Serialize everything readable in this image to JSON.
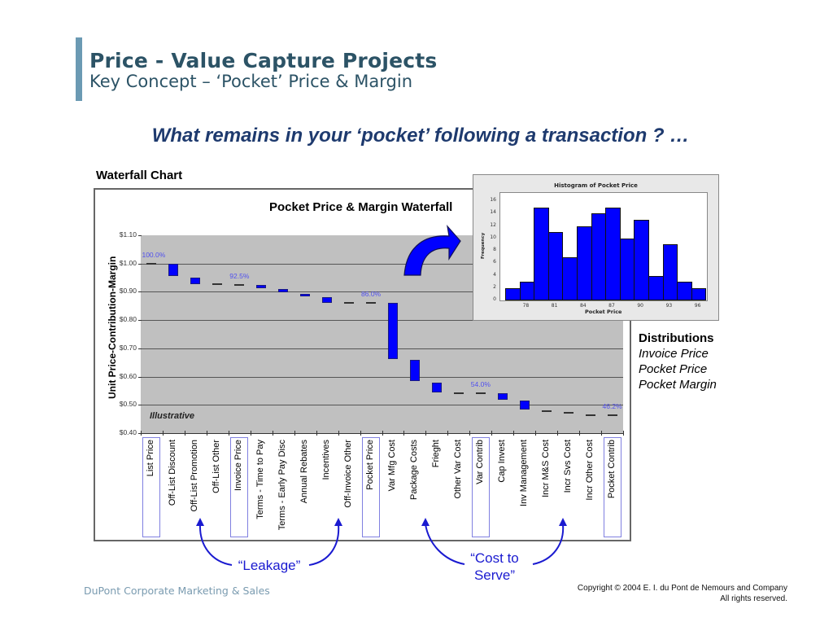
{
  "slide": {
    "title": "Price - Value Capture Projects",
    "subtitle": "Key Concept – ‘Pocket’ Price & Margin",
    "question": "What remains in your ‘pocket’ following a transaction ? …",
    "section_label": "Waterfall Chart",
    "illustrative_label": "Illustrative",
    "distributions": {
      "heading": "Distributions",
      "items": [
        "Invoice Price",
        "Pocket Price",
        "Pocket Margin"
      ]
    },
    "callouts": {
      "leakage": "“Leakage”",
      "cost_to_serve_line1": "“Cost to",
      "cost_to_serve_line2": "Serve”"
    },
    "footer": {
      "left": "DuPont Corporate Marketing & Sales",
      "copyright_line1": "Copyright © 2004 E. I. du Pont de Nemours and Company",
      "copyright_line2": "All rights reserved."
    },
    "colors": {
      "accent_bar": "#6b9ab3",
      "title": "#2c5366",
      "question": "#1e3a6e",
      "bar_fill": "#0000ff",
      "plot_bg": "#c0c0c0",
      "pct_label": "#5050ee",
      "callout": "#1a1ad0"
    }
  },
  "chart_data": [
    {
      "type": "bar",
      "subtype": "waterfall",
      "title": "Pocket Price & Margin Waterfall",
      "xlabel": "",
      "ylabel": "Unit Price-Contribution-Margin",
      "ylim": [
        0.4,
        1.1
      ],
      "yticks": [
        "$1.10",
        "$1.00",
        "$0.90",
        "$0.80",
        "$0.70",
        "$0.60",
        "$0.50",
        "$0.40"
      ],
      "grid": true,
      "categories": [
        "List Price",
        "Off-List Discount",
        "Off-List Promotion",
        "Off-List Other",
        "Invoice Price",
        "Terms - Time to Pay",
        "Terms - Early Pay Disc",
        "Annual Rebates",
        "Incentives",
        "Off-Invoice Other",
        "Pocket Price",
        "Var Mfg Cost",
        "Package Costs",
        "Frieght",
        "Other Var Cost",
        "Var Contrib",
        "Cap Invest",
        "Inv Management",
        "Incr M&S Cost",
        "Incr Svs Cost",
        "Incr Other Cost",
        "Pocket Contrib"
      ],
      "bars": [
        {
          "label": "List Price",
          "kind": "total",
          "top": 1.0,
          "bottom": 1.0
        },
        {
          "label": "Off-List Discount",
          "kind": "delta",
          "top": 1.0,
          "bottom": 0.955
        },
        {
          "label": "Off-List Promotion",
          "kind": "delta",
          "top": 0.95,
          "bottom": 0.928
        },
        {
          "label": "Off-List Other",
          "kind": "delta",
          "top": 0.926,
          "bottom": 0.925
        },
        {
          "label": "Invoice Price",
          "kind": "total",
          "top": 0.925,
          "bottom": 0.925
        },
        {
          "label": "Terms - Time to Pay",
          "kind": "delta",
          "top": 0.925,
          "bottom": 0.913
        },
        {
          "label": "Terms - Early Pay Disc",
          "kind": "delta",
          "top": 0.91,
          "bottom": 0.897
        },
        {
          "label": "Annual Rebates",
          "kind": "delta",
          "top": 0.893,
          "bottom": 0.887
        },
        {
          "label": "Incentives",
          "kind": "delta",
          "top": 0.882,
          "bottom": 0.862
        },
        {
          "label": "Off-Invoice Other",
          "kind": "delta",
          "top": 0.86,
          "bottom": 0.859
        },
        {
          "label": "Pocket Price",
          "kind": "total",
          "top": 0.86,
          "bottom": 0.86
        },
        {
          "label": "Var Mfg Cost",
          "kind": "delta",
          "top": 0.86,
          "bottom": 0.663
        },
        {
          "label": "Package Costs",
          "kind": "delta",
          "top": 0.66,
          "bottom": 0.583
        },
        {
          "label": "Frieght",
          "kind": "delta",
          "top": 0.58,
          "bottom": 0.543
        },
        {
          "label": "Other Var Cost",
          "kind": "delta",
          "top": 0.541,
          "bottom": 0.54
        },
        {
          "label": "Var Contrib",
          "kind": "total",
          "top": 0.54,
          "bottom": 0.54
        },
        {
          "label": "Cap Invest",
          "kind": "delta",
          "top": 0.54,
          "bottom": 0.518
        },
        {
          "label": "Inv Management",
          "kind": "delta",
          "top": 0.515,
          "bottom": 0.483
        },
        {
          "label": "Incr M&S Cost",
          "kind": "delta",
          "top": 0.478,
          "bottom": 0.474
        },
        {
          "label": "Incr Svs Cost",
          "kind": "delta",
          "top": 0.471,
          "bottom": 0.467
        },
        {
          "label": "Incr Other Cost",
          "kind": "delta",
          "top": 0.463,
          "bottom": 0.462
        },
        {
          "label": "Pocket Contrib",
          "kind": "total",
          "top": 0.462,
          "bottom": 0.462
        }
      ],
      "annotations": [
        {
          "at": "List Price",
          "text": "100.0%"
        },
        {
          "at": "Invoice Price",
          "text": "92.5%"
        },
        {
          "at": "Pocket Price",
          "text": "86.0%"
        },
        {
          "at": "Var Contrib",
          "text": "54.0%"
        },
        {
          "at": "Pocket Contrib",
          "text": "46.2%"
        }
      ],
      "highlighted_categories": [
        "List Price",
        "Invoice Price",
        "Pocket Price",
        "Var Contrib",
        "Pocket Contrib"
      ],
      "tick_labels": {
        "y_ticks": [
          "$1.10",
          "$1.00",
          "$0.90",
          "$0.80",
          "$0.70",
          "$0.60",
          "$0.50",
          "$0.40"
        ]
      }
    },
    {
      "type": "bar",
      "subtype": "histogram",
      "title": "Histogram of Pocket Price",
      "xlabel": "Pocket Price",
      "ylabel": "Frequency",
      "ylim": [
        0,
        16
      ],
      "yticks": [
        "0",
        "2",
        "4",
        "6",
        "8",
        "10",
        "12",
        "14",
        "16"
      ],
      "xticks": [
        "78",
        "81",
        "84",
        "87",
        "90",
        "93",
        "96"
      ],
      "bin_centers": [
        76.5,
        78,
        79.5,
        81,
        82.5,
        84,
        85.5,
        87,
        88.5,
        90,
        91.5,
        93,
        94.5,
        96
      ],
      "values": [
        2,
        3,
        15,
        11,
        7,
        12,
        14,
        15,
        10,
        13,
        4,
        9,
        3,
        2
      ],
      "grid": false
    }
  ]
}
